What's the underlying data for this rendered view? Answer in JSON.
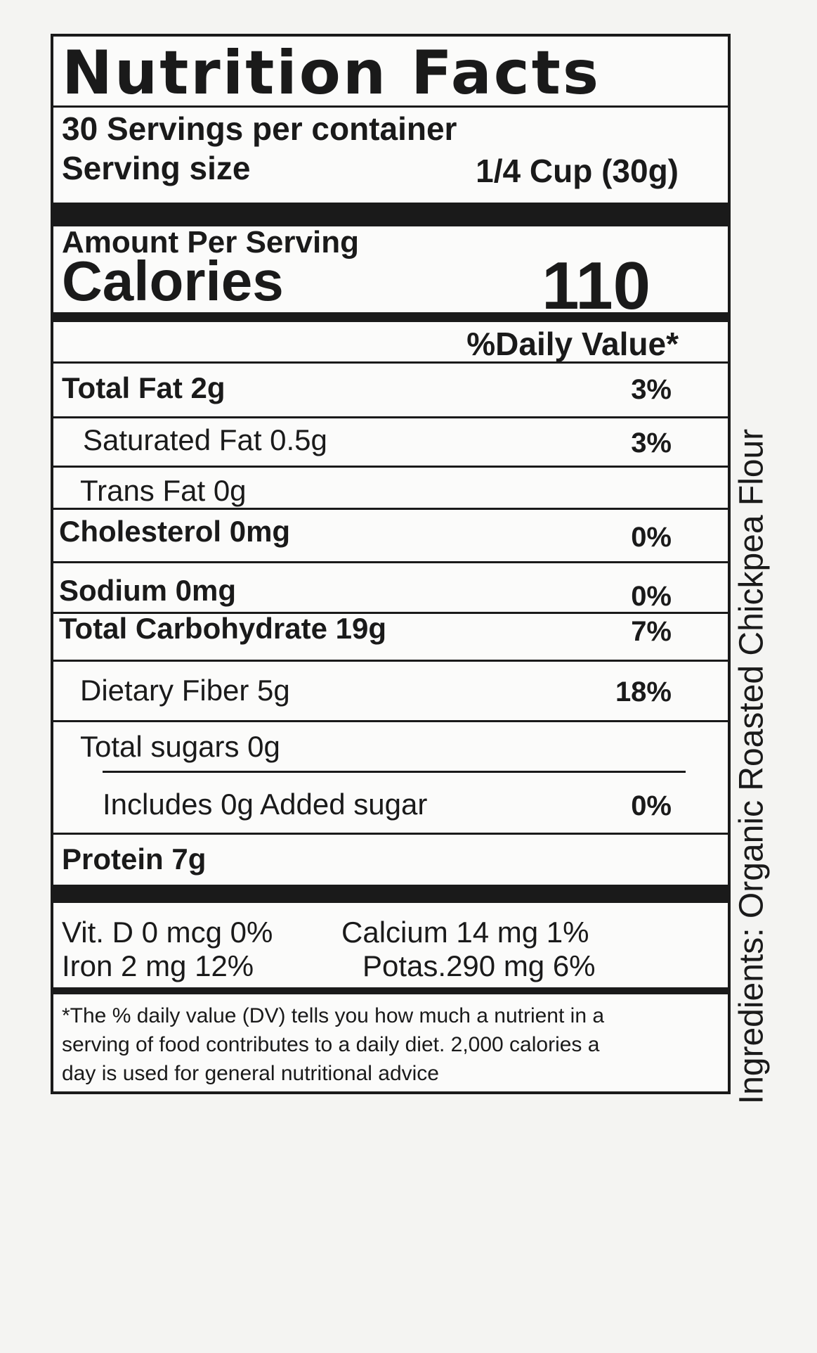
{
  "label": {
    "title": "Nutrition Facts",
    "servings": "30 Servings per container",
    "serving_size_label": "Serving size",
    "serving_size": "1/4 Cup (30g)",
    "amount_per_serving": "Amount Per Serving",
    "calories_label": "Calories",
    "calories": "110",
    "daily_value_header": "%Daily Value*",
    "nutrients": [
      {
        "name": "Total Fat 2g",
        "dv": "3%"
      },
      {
        "name": "Saturated Fat 0.5g",
        "dv": "3%"
      },
      {
        "name": "Trans Fat 0g"
      },
      {
        "name": "Cholesterol  0mg",
        "dv": "0%"
      },
      {
        "name": "Sodium  0mg",
        "dv": "0%"
      },
      {
        "name": "Total Carbohydrate  19g",
        "dv": "7%"
      },
      {
        "name": "Dietary Fiber  5g",
        "dv": "18%"
      },
      {
        "name": "Total sugars 0g"
      },
      {
        "name": "Includes 0g Added sugar",
        "dv": "0%"
      },
      {
        "name": "Protein  7g"
      }
    ],
    "vitamins": [
      "Vit. D 0 mcg 0%",
      "Calcium 14 mg 1%",
      "Iron 2 mg 12%",
      "Potas.290 mg 6%"
    ],
    "footnote": "*The % daily value (DV) tells you how much a nutrient in a serving of food contributes to a daily diet. 2,000 calories a day is used for general nutritional advice"
  },
  "ingredients": "Ingredients: Organic Roasted Chickpea Flour"
}
